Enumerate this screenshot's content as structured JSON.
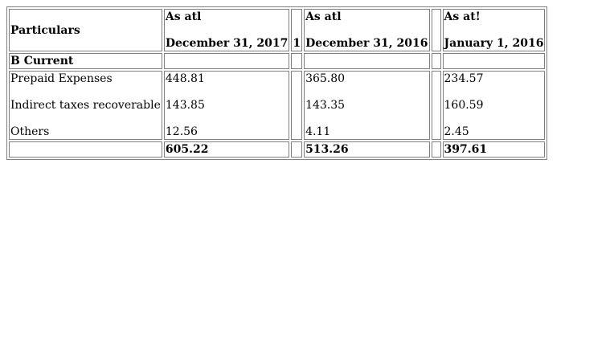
{
  "table": {
    "header": {
      "particulars": "Particulars",
      "col1_line1": "As atl",
      "col1_line2": "December 31, 2017",
      "spacer_mark": "1",
      "col2_line1": "As atl",
      "col2_line2": "December 31, 2016",
      "col3_line1": "As at!",
      "col3_line2": "January 1, 2016"
    },
    "section_label": "B Current",
    "rows": [
      {
        "label": "Prepaid Expenses",
        "v2017": "448.81",
        "v2016": "365.80",
        "v2016jan": "234.57"
      },
      {
        "label": "Indirect taxes recoverable",
        "v2017": "143.85",
        "v2016": "143.35",
        "v2016jan": "160.59"
      },
      {
        "label": "Others",
        "v2017": "12.56",
        "v2016": "4.11",
        "v2016jan": "2.45"
      }
    ],
    "totals": {
      "v2017": "605.22",
      "v2016": "513.26",
      "v2016jan": "397.61"
    }
  }
}
